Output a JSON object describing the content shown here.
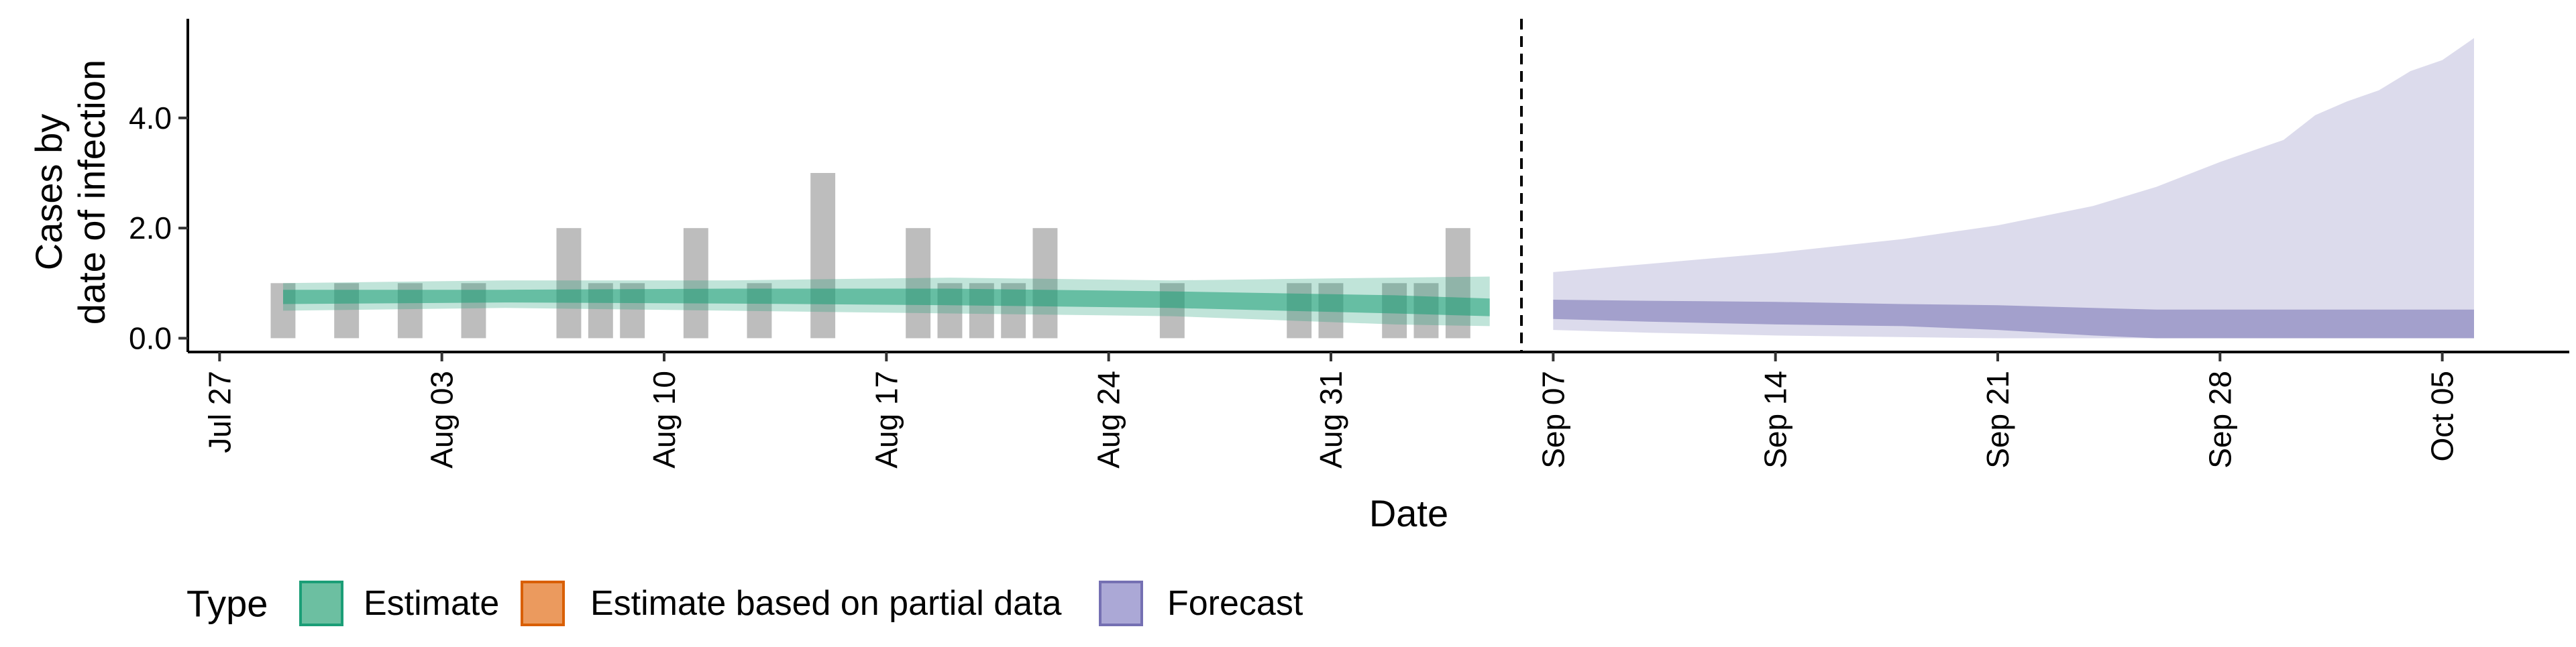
{
  "chart_data": {
    "type": "bar",
    "xlabel": "Date",
    "ylabel_lines": [
      "Cases by",
      "date of infection"
    ],
    "ylim": [
      -0.25,
      5.8
    ],
    "y_ticks": [
      {
        "value": 0,
        "label": "0.0"
      },
      {
        "value": 2,
        "label": "2.0"
      },
      {
        "value": 4,
        "label": "4.0"
      }
    ],
    "x_ticks": [
      {
        "date": "2020-07-27",
        "label": "Jul 27"
      },
      {
        "date": "2020-08-03",
        "label": "Aug 03"
      },
      {
        "date": "2020-08-10",
        "label": "Aug 10"
      },
      {
        "date": "2020-08-17",
        "label": "Aug 17"
      },
      {
        "date": "2020-08-24",
        "label": "Aug 24"
      },
      {
        "date": "2020-08-31",
        "label": "Aug 31"
      },
      {
        "date": "2020-09-07",
        "label": "Sep 07"
      },
      {
        "date": "2020-09-14",
        "label": "Sep 14"
      },
      {
        "date": "2020-09-21",
        "label": "Sep 21"
      },
      {
        "date": "2020-09-28",
        "label": "Sep 28"
      },
      {
        "date": "2020-10-05",
        "label": "Oct 05"
      }
    ],
    "xlim": [
      "2020-07-26",
      "2020-10-09"
    ],
    "reported_cases": {
      "name": "Reported cases",
      "color": "#bdbdbd",
      "points": [
        {
          "date": "2020-07-29",
          "value": 1
        },
        {
          "date": "2020-07-31",
          "value": 1
        },
        {
          "date": "2020-08-02",
          "value": 1
        },
        {
          "date": "2020-08-04",
          "value": 1
        },
        {
          "date": "2020-08-07",
          "value": 2
        },
        {
          "date": "2020-08-08",
          "value": 1
        },
        {
          "date": "2020-08-09",
          "value": 1
        },
        {
          "date": "2020-08-11",
          "value": 2
        },
        {
          "date": "2020-08-13",
          "value": 1
        },
        {
          "date": "2020-08-15",
          "value": 3
        },
        {
          "date": "2020-08-18",
          "value": 2
        },
        {
          "date": "2020-08-19",
          "value": 1
        },
        {
          "date": "2020-08-20",
          "value": 1
        },
        {
          "date": "2020-08-21",
          "value": 1
        },
        {
          "date": "2020-08-22",
          "value": 2
        },
        {
          "date": "2020-08-26",
          "value": 1
        },
        {
          "date": "2020-08-30",
          "value": 1
        },
        {
          "date": "2020-08-31",
          "value": 1
        },
        {
          "date": "2020-09-02",
          "value": 1
        },
        {
          "date": "2020-09-03",
          "value": 1
        },
        {
          "date": "2020-09-04",
          "value": 2
        }
      ]
    },
    "estimate": {
      "name": "Estimate",
      "color": "#1b9e77",
      "dates": [
        "2020-07-29",
        "2020-08-05",
        "2020-08-12",
        "2020-08-19",
        "2020-08-26",
        "2020-09-02",
        "2020-09-05"
      ],
      "outer_lower": [
        0.5,
        0.55,
        0.5,
        0.45,
        0.4,
        0.25,
        0.22
      ],
      "inner_lower": [
        0.62,
        0.65,
        0.63,
        0.6,
        0.55,
        0.45,
        0.4
      ],
      "inner_upper": [
        0.88,
        0.88,
        0.9,
        0.9,
        0.85,
        0.78,
        0.72
      ],
      "outer_upper": [
        1.0,
        1.05,
        1.05,
        1.1,
        1.05,
        1.1,
        1.12
      ]
    },
    "forecast": {
      "name": "Forecast",
      "color": "#7570b3",
      "dates": [
        "2020-09-07",
        "2020-09-10",
        "2020-09-14",
        "2020-09-18",
        "2020-09-21",
        "2020-09-24",
        "2020-09-26",
        "2020-09-28",
        "2020-09-30",
        "2020-10-01",
        "2020-10-02",
        "2020-10-03",
        "2020-10-04",
        "2020-10-05",
        "2020-10-06"
      ],
      "outer_lower": [
        0.15,
        0.1,
        0.05,
        0.02,
        0.0,
        0.0,
        0.0,
        0.0,
        0.0,
        0.0,
        0.0,
        0.0,
        0.0,
        0.0,
        0.0
      ],
      "inner_lower": [
        0.35,
        0.3,
        0.25,
        0.22,
        0.15,
        0.05,
        0.0,
        0.0,
        0.0,
        0.0,
        0.0,
        0.0,
        0.0,
        0.0,
        0.0
      ],
      "inner_upper": [
        0.7,
        0.68,
        0.66,
        0.62,
        0.6,
        0.55,
        0.52,
        0.52,
        0.52,
        0.52,
        0.52,
        0.52,
        0.52,
        0.52,
        0.52
      ],
      "outer_upper": [
        1.2,
        1.35,
        1.55,
        1.8,
        2.05,
        2.4,
        2.75,
        3.2,
        3.6,
        4.05,
        4.3,
        4.5,
        4.85,
        5.05,
        5.45
      ]
    },
    "vline_date": "2020-09-06",
    "grid": false,
    "legend": {
      "position": "bottom-left",
      "title": "Type",
      "items": [
        {
          "label": "Estimate",
          "fill": "#6cbfa1",
          "stroke": "#1b9e77"
        },
        {
          "label": "Estimate based on partial data",
          "fill": "#eb9a5e",
          "stroke": "#d95f02"
        },
        {
          "label": "Forecast",
          "fill": "#aba8d6",
          "stroke": "#7570b3"
        }
      ]
    }
  }
}
